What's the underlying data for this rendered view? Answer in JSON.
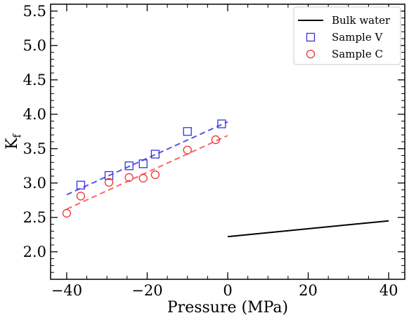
{
  "chart_data": {
    "type": "scatter",
    "title": "",
    "xlabel": "Pressure (MPa)",
    "ylabel": "K",
    "ylabel_sub": "f",
    "xlim": [
      -44,
      44
    ],
    "ylim": [
      1.6,
      5.6
    ],
    "x_ticks": [
      -40,
      -20,
      0,
      20,
      40
    ],
    "x_tick_labels": [
      "−40",
      "−20",
      "0",
      "20",
      "40"
    ],
    "y_ticks": [
      2.0,
      2.5,
      3.0,
      3.5,
      4.0,
      4.5,
      5.0,
      5.5
    ],
    "y_tick_labels": [
      "2.0",
      "2.5",
      "3.0",
      "3.5",
      "4.0",
      "4.5",
      "5.0",
      "5.5"
    ],
    "grid": false,
    "legend_position": "top-right",
    "series": [
      {
        "name": "Bulk water",
        "kind": "line",
        "color": "#000000",
        "x": [
          0,
          40
        ],
        "y": [
          2.22,
          2.45
        ]
      },
      {
        "name": "Sample V",
        "kind": "scatter",
        "marker": "square",
        "color": "#3333dd",
        "x": [
          -36.5,
          -29.5,
          -24.5,
          -21.0,
          -18.0,
          -10.0,
          -1.5
        ],
        "y": [
          2.97,
          3.11,
          3.25,
          3.28,
          3.42,
          3.75,
          3.86
        ],
        "fit": {
          "color": "#5555ee",
          "x": [
            -40,
            0
          ],
          "y": [
            2.83,
            3.89
          ]
        }
      },
      {
        "name": "Sample C",
        "kind": "scatter",
        "marker": "circle",
        "color": "#ee3333",
        "x": [
          -40.0,
          -36.5,
          -29.5,
          -24.5,
          -21.0,
          -18.0,
          -10.0,
          -3.0
        ],
        "y": [
          2.56,
          2.81,
          3.01,
          3.08,
          3.07,
          3.12,
          3.48,
          3.63
        ],
        "fit": {
          "color": "#ff6666",
          "x": [
            -40,
            0
          ],
          "y": [
            2.62,
            3.69
          ]
        }
      }
    ]
  }
}
